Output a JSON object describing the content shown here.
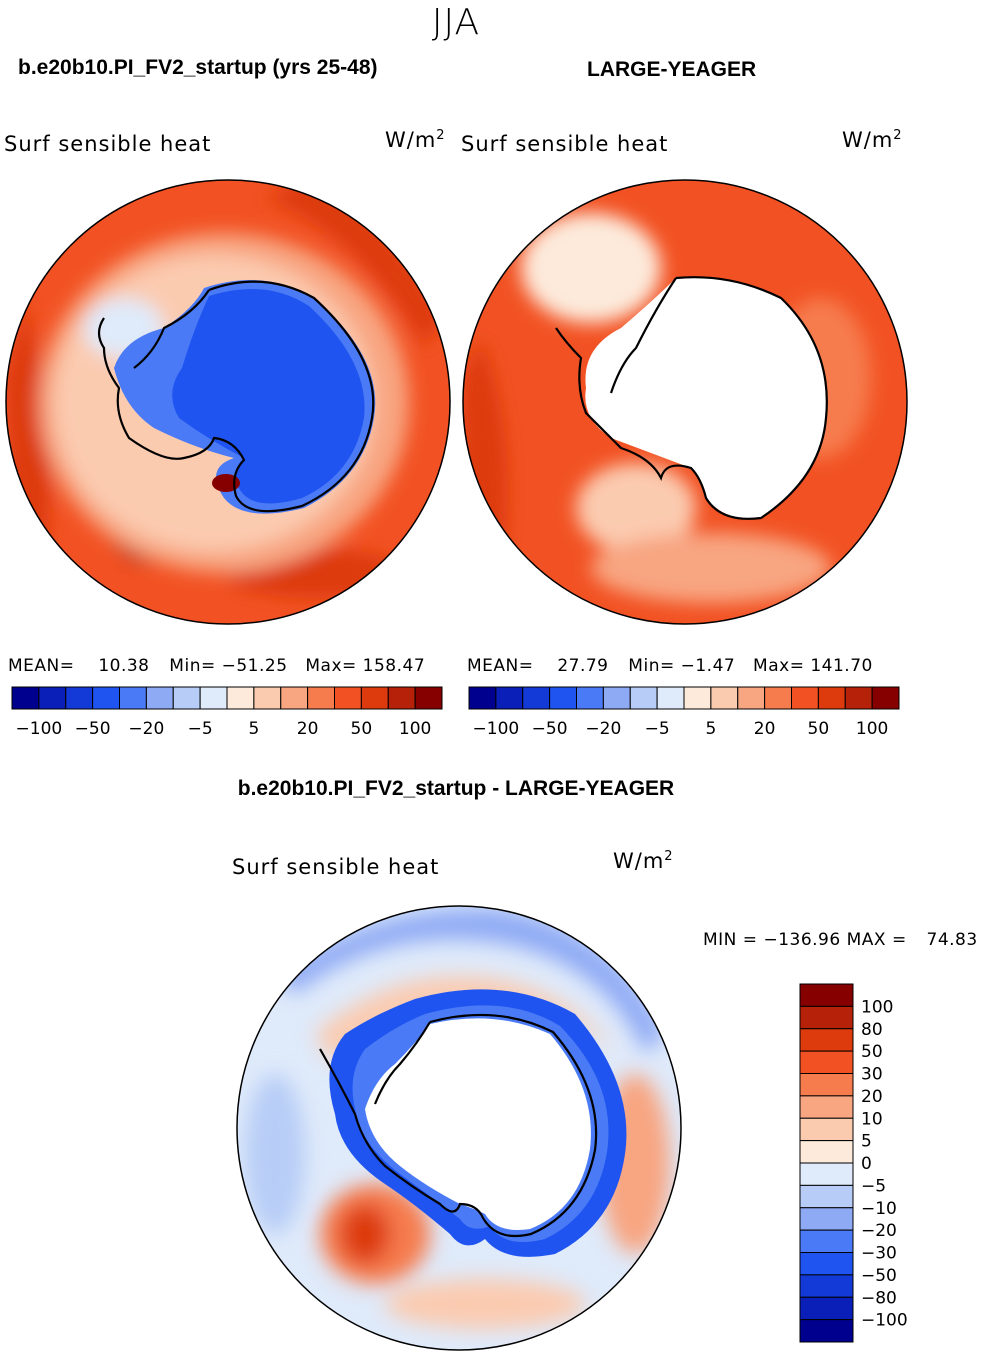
{
  "figure": {
    "season": "JJA",
    "diff_title": "b.e20b10.PI_FV2_startup - LARGE-YEAGER",
    "colors": {
      "abs_palette": [
        "#00008f",
        "#0a1fb8",
        "#1339d6",
        "#1f54f0",
        "#4a7af5",
        "#8faaf5",
        "#b7cdf7",
        "#dfeafa",
        "#fdeadb",
        "#fbcbb0",
        "#f8a581",
        "#f67c4e",
        "#f25223",
        "#dd3a0d",
        "#b62109",
        "#870000"
      ],
      "diff_palette": [
        "#00008f",
        "#0a1fb8",
        "#1339d6",
        "#1f54f0",
        "#4a7af5",
        "#8faaf5",
        "#b7cdf7",
        "#dfeafa",
        "#fdeadb",
        "#fbcbb0",
        "#f8a581",
        "#f67c4e",
        "#f25223",
        "#dd3a0d",
        "#b62109",
        "#870000"
      ]
    }
  },
  "chart_data": [
    {
      "type": "heatmap",
      "projection": "south-polar-stereographic",
      "case_title": "b.e20b10.PI_FV2_startup (yrs 25-48)",
      "variable": "Surf sensible heat",
      "units_base": "W/m",
      "units_exp": "2",
      "stats": {
        "mean_label": "MEAN=",
        "mean": "10.38",
        "min_label": "Min=",
        "min": "−51.25",
        "max_label": "Max=",
        "max": "158.47"
      },
      "colorbar_ticks": [
        "−100",
        "−50",
        "−20",
        "−5",
        "5",
        "20",
        "50",
        "100"
      ],
      "contour_levels": [
        -100,
        -80,
        -50,
        -30,
        -20,
        -10,
        -5,
        0,
        5,
        10,
        20,
        30,
        50,
        80,
        100
      ],
      "field_summary": {
        "ocean_typical": 30,
        "antarctic_interior": -30,
        "sea_ice_edge": 10
      }
    },
    {
      "type": "heatmap",
      "projection": "south-polar-stereographic",
      "case_title": "LARGE-YEAGER",
      "variable": "Surf sensible heat",
      "units_base": "W/m",
      "units_exp": "2",
      "stats": {
        "mean_label": "MEAN=",
        "mean": "27.79",
        "min_label": "Min=",
        "min": "−1.47",
        "max_label": "Max=",
        "max": "141.70"
      },
      "colorbar_ticks": [
        "−100",
        "−50",
        "−20",
        "−5",
        "5",
        "20",
        "50",
        "100"
      ],
      "contour_levels": [
        -100,
        -80,
        -50,
        -30,
        -20,
        -10,
        -5,
        0,
        5,
        10,
        20,
        30,
        50,
        80,
        100
      ],
      "field_summary": {
        "ocean_typical": 35,
        "antarctic_interior": null,
        "sea_ice_edge": 10
      }
    },
    {
      "type": "heatmap",
      "projection": "south-polar-stereographic",
      "case_title": "b.e20b10.PI_FV2_startup - LARGE-YEAGER",
      "variable": "Surf sensible heat",
      "units_base": "W/m",
      "units_exp": "2",
      "stats": {
        "min_label": "MIN =",
        "min": "−136.96",
        "max_label": "MAX =",
        "max": "74.83"
      },
      "colorbar_ticks": [
        "100",
        "80",
        "50",
        "30",
        "20",
        "10",
        "5",
        "0",
        "−5",
        "−10",
        "−20",
        "−30",
        "−50",
        "−80",
        "−100"
      ],
      "contour_levels": [
        -100,
        -80,
        -50,
        -30,
        -20,
        -10,
        -5,
        0,
        5,
        10,
        20,
        30,
        50,
        80,
        100
      ],
      "field_summary": {
        "ocean_typical": 5,
        "sea_ice_edge": -30
      }
    }
  ]
}
